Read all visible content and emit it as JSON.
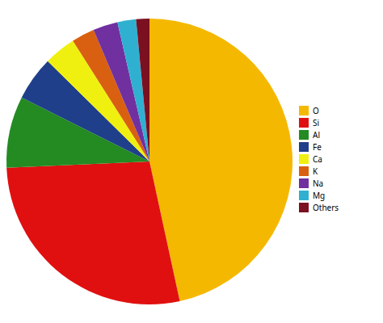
{
  "chart_data": {
    "type": "pie",
    "categories": [
      "O",
      "Si",
      "Al",
      "Fe",
      "Ca",
      "K",
      "Na",
      "Mg",
      "Others"
    ],
    "values": [
      46.6,
      27.7,
      8.1,
      5.0,
      3.6,
      2.6,
      2.8,
      2.1,
      1.5
    ],
    "colors": [
      "#F5B800",
      "#E01010",
      "#238B22",
      "#1F3F8A",
      "#F0F010",
      "#D96010",
      "#7030A0",
      "#30B0D0",
      "#7B1020"
    ],
    "legend": "right"
  }
}
